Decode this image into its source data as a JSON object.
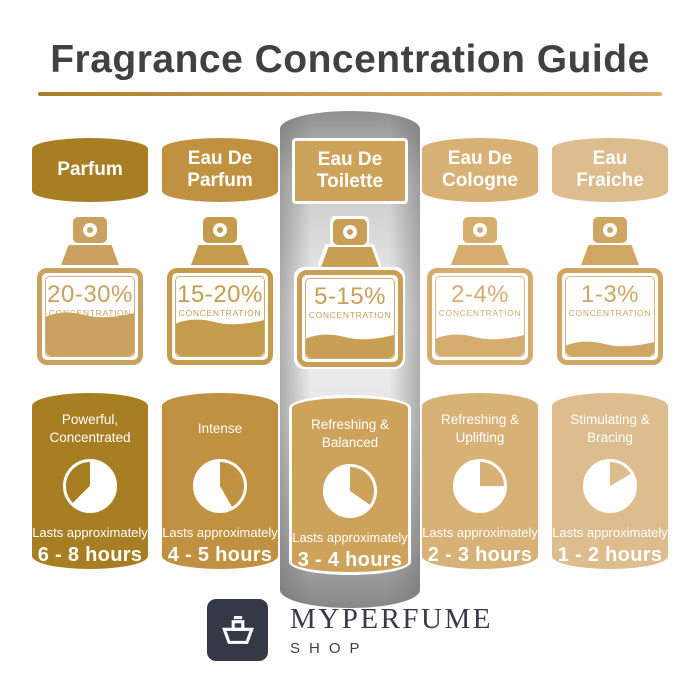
{
  "title": "Fragrance Concentration Guide",
  "highlighted_index": 2,
  "columns": [
    {
      "name": "Parfum",
      "concentration": "20-30%",
      "concentration_label": "CONCENTRATION",
      "description": "Powerful, Concentrated",
      "lasts_label": "Lasts approximately",
      "duration": "6 - 8 hours",
      "fill_percent": 42,
      "clock": {
        "white_start": 0,
        "white_end": 225
      },
      "colors": {
        "main": "#a87e22",
        "bottle": "#c9a160"
      }
    },
    {
      "name": "Eau De Parfum",
      "concentration": "15-20%",
      "concentration_label": "CONCENTRATION",
      "description": "Intense",
      "lasts_label": "Lasts approximately",
      "duration": "4 - 5 hours",
      "fill_percent": 34,
      "clock": {
        "white_start": 150,
        "white_end": 360
      },
      "colors": {
        "main": "#bf9140",
        "bottle": "#c59c4e"
      }
    },
    {
      "name": "Eau De Toilette",
      "concentration": "5-15%",
      "concentration_label": "CONCENTRATION",
      "description": "Refreshing & Balanced",
      "lasts_label": "Lasts approximately",
      "duration": "3 - 4 hours",
      "fill_percent": 20,
      "clock": {
        "white_start": 125,
        "white_end": 360
      },
      "colors": {
        "main": "#cda35c",
        "bottle": "#c89f55"
      }
    },
    {
      "name": "Eau De Cologne",
      "concentration": "2-4%",
      "concentration_label": "CONCENTRATION",
      "description": "Refreshing & Uplifting",
      "lasts_label": "Lasts approximately",
      "duration": "2 - 3 hours",
      "fill_percent": 17,
      "clock": {
        "white_start": 90,
        "white_end": 360
      },
      "colors": {
        "main": "#d7b175",
        "bottle": "#d5ad6e"
      }
    },
    {
      "name": "Eau Fraiche",
      "concentration": "1-3%",
      "concentration_label": "CONCENTRATION",
      "description": "Stimulating & Bracing",
      "lasts_label": "Lasts approximately",
      "duration": "1 - 2 hours",
      "fill_percent": 9,
      "clock": {
        "white_start": 60,
        "white_end": 360
      },
      "colors": {
        "main": "#ddbd8e",
        "bottle": "#cfa763"
      }
    }
  ],
  "brand": {
    "name": "MYPERFUME",
    "sub": "SHOP"
  }
}
